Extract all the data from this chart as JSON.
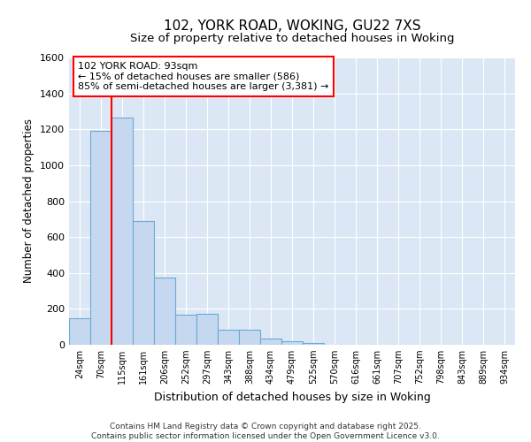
{
  "title1": "102, YORK ROAD, WOKING, GU22 7XS",
  "title2": "Size of property relative to detached houses in Woking",
  "xlabel": "Distribution of detached houses by size in Woking",
  "ylabel": "Number of detached properties",
  "categories": [
    "24sqm",
    "70sqm",
    "115sqm",
    "161sqm",
    "206sqm",
    "252sqm",
    "297sqm",
    "343sqm",
    "388sqm",
    "434sqm",
    "479sqm",
    "525sqm",
    "570sqm",
    "616sqm",
    "661sqm",
    "707sqm",
    "752sqm",
    "798sqm",
    "843sqm",
    "889sqm",
    "934sqm"
  ],
  "values": [
    150,
    1190,
    1265,
    690,
    375,
    165,
    170,
    85,
    85,
    33,
    20,
    10,
    0,
    0,
    0,
    0,
    0,
    0,
    0,
    0,
    0
  ],
  "bar_color": "#c5d8f0",
  "bar_edge_color": "#6aaad4",
  "grid_color": "#ffffff",
  "bg_color": "#dce7f5",
  "ylim": [
    0,
    1600
  ],
  "yticks": [
    0,
    200,
    400,
    600,
    800,
    1000,
    1200,
    1400,
    1600
  ],
  "red_line_index": 1.5,
  "annotation_line1": "102 YORK ROAD: 93sqm",
  "annotation_line2": "← 15% of detached houses are smaller (586)",
  "annotation_line3": "85% of semi-detached houses are larger (3,381) →",
  "footer1": "Contains HM Land Registry data © Crown copyright and database right 2025.",
  "footer2": "Contains public sector information licensed under the Open Government Licence v3.0."
}
